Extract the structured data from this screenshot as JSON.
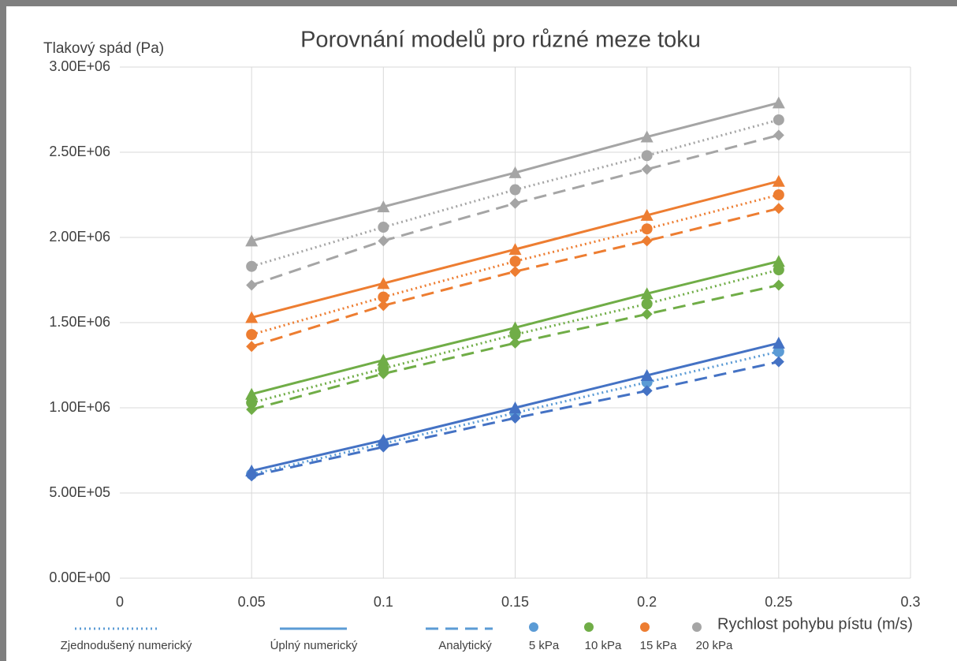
{
  "chart_data": {
    "type": "line",
    "title": "Porovnání modelů pro různé meze toku",
    "y_label": "Tlakový spád (Pa)",
    "x_label": "Rychlost pohybu pístu (m/s)",
    "x": [
      0.05,
      0.1,
      0.15,
      0.2,
      0.25
    ],
    "xlim": [
      0,
      0.3
    ],
    "xticks": [
      0,
      0.05,
      0.1,
      0.15,
      0.2,
      0.25,
      0.3
    ],
    "ylim": [
      0,
      3000000
    ],
    "yticks": [
      {
        "value": 0,
        "label": "0.00E+00"
      },
      {
        "value": 500000,
        "label": "5.00E+05"
      },
      {
        "value": 1000000,
        "label": "1.00E+06"
      },
      {
        "value": 1500000,
        "label": "1.50E+06"
      },
      {
        "value": 2000000,
        "label": "2.00E+06"
      },
      {
        "value": 2500000,
        "label": "2.50E+06"
      },
      {
        "value": 3000000,
        "label": "3.00E+06"
      }
    ],
    "grid": true,
    "models": [
      {
        "name": "Zjednodušený numerický",
        "dash": "dotted",
        "marker": "circle"
      },
      {
        "name": "Úplný numerický",
        "dash": "solid",
        "marker": "triangle"
      },
      {
        "name": "Analytický",
        "dash": "dashed",
        "marker": "diamond"
      }
    ],
    "model_legend_color": "#5b9bd5",
    "groups": [
      {
        "name": "5 kPa",
        "color": "#5b9bd5",
        "series": [
          {
            "color": "#5b9bd5",
            "values": [
              610000,
              790000,
              970000,
              1150000,
              1330000
            ]
          },
          {
            "color": "#4472c4",
            "values": [
              630000,
              810000,
              1000000,
              1190000,
              1380000
            ]
          },
          {
            "color": "#4472c4",
            "values": [
              600000,
              770000,
              940000,
              1100000,
              1270000
            ]
          }
        ]
      },
      {
        "name": "10 kPa",
        "color": "#70ad47",
        "series": [
          {
            "color": "#70ad47",
            "values": [
              1030000,
              1230000,
              1430000,
              1610000,
              1810000
            ]
          },
          {
            "color": "#70ad47",
            "values": [
              1080000,
              1280000,
              1470000,
              1670000,
              1860000
            ]
          },
          {
            "color": "#70ad47",
            "values": [
              990000,
              1200000,
              1380000,
              1550000,
              1720000
            ]
          }
        ]
      },
      {
        "name": "15 kPa",
        "color": "#ed7d31",
        "series": [
          {
            "color": "#ed7d31",
            "values": [
              1430000,
              1650000,
              1860000,
              2050000,
              2250000
            ]
          },
          {
            "color": "#ed7d31",
            "values": [
              1530000,
              1730000,
              1930000,
              2130000,
              2330000
            ]
          },
          {
            "color": "#ed7d31",
            "values": [
              1360000,
              1600000,
              1800000,
              1980000,
              2170000
            ]
          }
        ]
      },
      {
        "name": "20 kPa",
        "color": "#a5a5a5",
        "series": [
          {
            "color": "#a5a5a5",
            "values": [
              1830000,
              2060000,
              2280000,
              2480000,
              2690000
            ]
          },
          {
            "color": "#a5a5a5",
            "values": [
              1980000,
              2180000,
              2380000,
              2590000,
              2790000
            ]
          },
          {
            "color": "#a5a5a5",
            "values": [
              1720000,
              1980000,
              2200000,
              2400000,
              2600000
            ]
          }
        ]
      }
    ]
  }
}
